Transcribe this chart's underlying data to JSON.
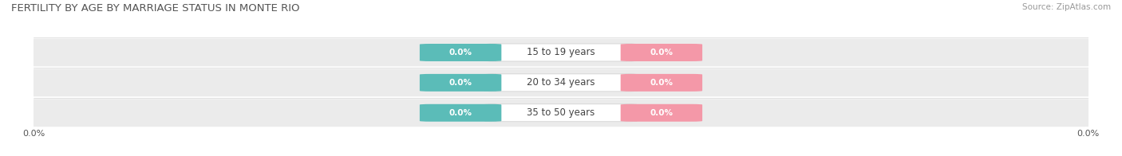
{
  "title": "FERTILITY BY AGE BY MARRIAGE STATUS IN MONTE RIO",
  "source": "Source: ZipAtlas.com",
  "categories": [
    "15 to 19 years",
    "20 to 34 years",
    "35 to 50 years"
  ],
  "married_values": [
    0.0,
    0.0,
    0.0
  ],
  "unmarried_values": [
    0.0,
    0.0,
    0.0
  ],
  "married_color": "#5bbcb8",
  "unmarried_color": "#f498a8",
  "title_fontsize": 9.5,
  "source_fontsize": 7.5,
  "axis_label_fontsize": 8,
  "bar_label_fontsize": 7.5,
  "category_fontsize": 8.5,
  "legend_fontsize": 8.5,
  "figsize": [
    14.06,
    1.96
  ],
  "dpi": 100
}
